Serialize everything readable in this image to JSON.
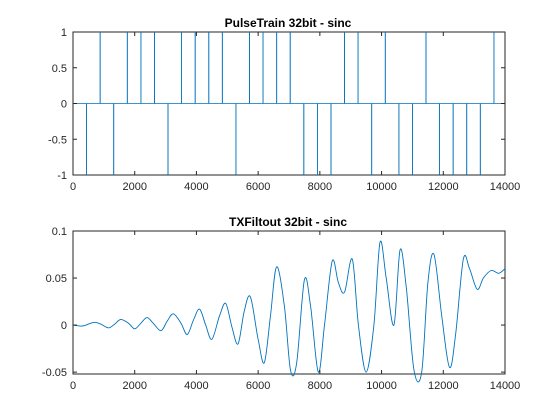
{
  "chart_data": [
    {
      "type": "line",
      "title": "PulseTrain 32bit - sinc",
      "xlabel": "",
      "ylabel": "",
      "xlim": [
        0,
        14000
      ],
      "ylim": [
        -1,
        1
      ],
      "grid": false,
      "legend": "none",
      "series_color": "#0072BD",
      "x_ticks": [
        0,
        2000,
        4000,
        6000,
        8000,
        10000,
        12000,
        14000
      ],
      "x_tick_labels": [
        "0",
        "2000",
        "4000",
        "6000",
        "8000",
        "10000",
        "12000",
        "14000"
      ],
      "y_ticks": [
        -1,
        -0.5,
        0,
        0.5,
        1
      ],
      "y_tick_labels": [
        "-1",
        "-0.5",
        "0",
        "0.5",
        "1"
      ],
      "pulses": [
        {
          "x": 440,
          "y": -1
        },
        {
          "x": 880,
          "y": 1
        },
        {
          "x": 1320,
          "y": -1
        },
        {
          "x": 1760,
          "y": 1
        },
        {
          "x": 2200,
          "y": 1
        },
        {
          "x": 2640,
          "y": 1
        },
        {
          "x": 3080,
          "y": -1
        },
        {
          "x": 3520,
          "y": 1
        },
        {
          "x": 3960,
          "y": 1
        },
        {
          "x": 4400,
          "y": 1
        },
        {
          "x": 4840,
          "y": 1
        },
        {
          "x": 5280,
          "y": -1
        },
        {
          "x": 5720,
          "y": 1
        },
        {
          "x": 6160,
          "y": 1
        },
        {
          "x": 6600,
          "y": 1
        },
        {
          "x": 7040,
          "y": 1
        },
        {
          "x": 7480,
          "y": -1
        },
        {
          "x": 7920,
          "y": -1
        },
        {
          "x": 8360,
          "y": -1
        },
        {
          "x": 8800,
          "y": 1
        },
        {
          "x": 9240,
          "y": 1
        },
        {
          "x": 9680,
          "y": -1
        },
        {
          "x": 10120,
          "y": 1
        },
        {
          "x": 10560,
          "y": -1
        },
        {
          "x": 11000,
          "y": -1
        },
        {
          "x": 11440,
          "y": 1
        },
        {
          "x": 11880,
          "y": -1
        },
        {
          "x": 12320,
          "y": -1
        },
        {
          "x": 12760,
          "y": -1
        },
        {
          "x": 13200,
          "y": -1
        },
        {
          "x": 13640,
          "y": 1
        }
      ]
    },
    {
      "type": "line",
      "title": "TXFiltout 32bit - sinc",
      "xlabel": "",
      "ylabel": "",
      "xlim": [
        0,
        14000
      ],
      "ylim": [
        -0.052,
        0.1
      ],
      "grid": false,
      "legend": "none",
      "series_color": "#0072BD",
      "x_ticks": [
        0,
        2000,
        4000,
        6000,
        8000,
        10000,
        12000,
        14000
      ],
      "x_tick_labels": [
        "0",
        "2000",
        "4000",
        "6000",
        "8000",
        "10000",
        "12000",
        "14000"
      ],
      "y_ticks": [
        -0.05,
        0,
        0.05,
        0.1
      ],
      "y_tick_labels": [
        "-0.05",
        "0",
        "0.05",
        "0.1"
      ],
      "x": [
        0,
        300,
        500,
        700,
        900,
        1150,
        1350,
        1550,
        1800,
        2000,
        2200,
        2400,
        2600,
        2850,
        3050,
        3250,
        3500,
        3700,
        3900,
        4100,
        4300,
        4500,
        4750,
        4950,
        5150,
        5350,
        5550,
        5750,
        6000,
        6200,
        6400,
        6600,
        6850,
        7050,
        7250,
        7500,
        7700,
        7950,
        8150,
        8400,
        8600,
        8800,
        9050,
        9250,
        9500,
        9750,
        9950,
        10150,
        10400,
        10600,
        10800,
        11050,
        11300,
        11500,
        11700,
        11950,
        12200,
        12400,
        12650,
        12850,
        13100,
        13300,
        13550,
        13800,
        14000
      ],
      "values": [
        0.0,
        -0.001,
        0.001,
        0.003,
        0.001,
        -0.003,
        0.001,
        0.006,
        0.002,
        -0.004,
        0.002,
        0.008,
        0.002,
        -0.006,
        0.004,
        0.012,
        0.002,
        -0.01,
        0.005,
        0.017,
        0.0,
        -0.015,
        0.01,
        0.023,
        -0.002,
        -0.02,
        0.015,
        0.03,
        -0.015,
        -0.04,
        0.01,
        0.062,
        0.02,
        -0.048,
        -0.04,
        0.048,
        0.02,
        -0.05,
        0.0,
        0.068,
        0.045,
        0.035,
        0.07,
        0.0,
        -0.05,
        0.0,
        0.088,
        0.05,
        0.0,
        0.08,
        0.04,
        -0.048,
        -0.05,
        0.045,
        0.075,
        0.01,
        -0.045,
        -0.01,
        0.07,
        0.06,
        0.038,
        0.05,
        0.058,
        0.055,
        0.06
      ]
    }
  ]
}
